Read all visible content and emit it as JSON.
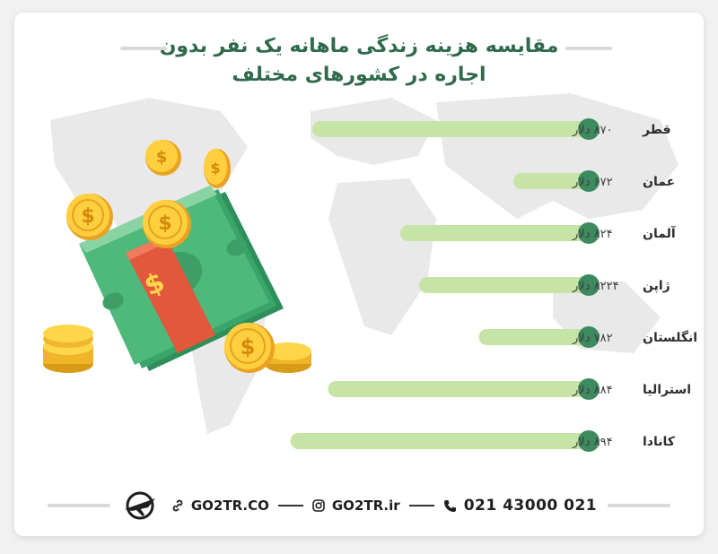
{
  "title": {
    "line1": "مقایسه هزینه زندگی ماهانه یک نفر بدون",
    "line2": "اجاره در کشورهای مختلف"
  },
  "chart_data": {
    "type": "bar",
    "orientation": "horizontal",
    "title": "مقایسه هزینه زندگی ماهانه یک نفر بدون اجاره در کشورهای مختلف",
    "categories": [
      "قطر",
      "عمان",
      "آلمان",
      "ژاپن",
      "انگلستان",
      "استرالیا",
      "کانادا"
    ],
    "values": [
      870,
      672,
      824,
      8224,
      782,
      884,
      894
    ],
    "value_labels": [
      "۸۷۰ دلار",
      "۶۷۲ دلار",
      "۸۲۴ دلار",
      "۸۲۲۴ دلار",
      "۷۸۲ دلار",
      "۸۸۴ دلار",
      "۸۹۴ دلار"
    ],
    "bar_fill_fraction": [
      0.88,
      0.24,
      0.6,
      0.54,
      0.35,
      0.83,
      0.95
    ],
    "grid": false,
    "legend": "none",
    "colors": {
      "bar": "#c6e4a6",
      "bar_end": "#3e8a5f",
      "label": "#2d2d2d",
      "value_text": "#3e3e3e"
    }
  },
  "footer": {
    "website": "GO2TR.CO",
    "instagram": "GO2TR.ir",
    "phone": "021 43000 021",
    "icons": [
      "plane-logo-icon",
      "link-icon",
      "instagram-icon",
      "phone-icon"
    ]
  },
  "colors": {
    "title": "#2f6a4b",
    "background": "#ffffff",
    "page": "#f1f1f1"
  }
}
